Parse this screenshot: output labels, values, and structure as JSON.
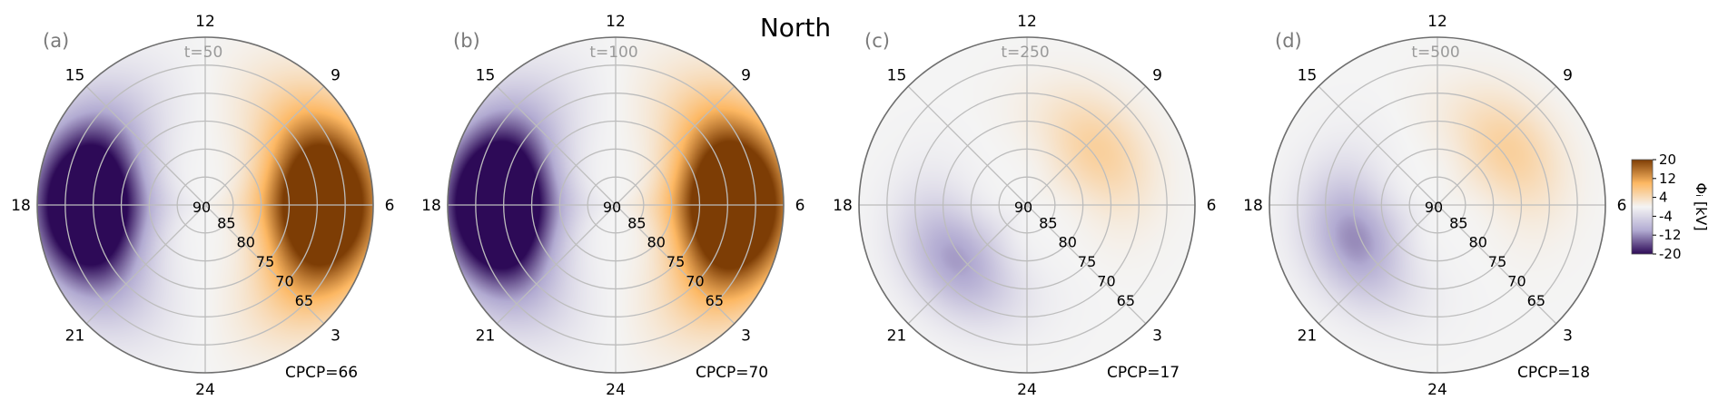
{
  "figure_title": "North",
  "colorbar": {
    "label": "Φᵢ [kV]",
    "ticks": [
      20,
      12,
      4,
      -4,
      -12,
      -20
    ],
    "range": [
      -20,
      20
    ],
    "colors": {
      "low": "#2d0a57",
      "mid": "#f4f4f4",
      "high": "#7d3d05"
    }
  },
  "chart_data": [
    {
      "type": "heatmap",
      "projection": "polar",
      "panel": "(a)",
      "time_label": "t=50",
      "annotation": "CPCP=66",
      "mlt_ticks": [
        "12",
        "9",
        "6",
        "3",
        "24",
        "21",
        "18",
        "15"
      ],
      "lat_ticks": [
        "90",
        "85",
        "80",
        "75",
        "70",
        "65"
      ],
      "lat_range": [
        60,
        90
      ],
      "potential": {
        "peak_kv": 33,
        "trough_kv": -33,
        "peak_mlt": 6,
        "trough_mlt": 18,
        "peak_lat": 69,
        "cell_width_deg": 10,
        "pattern": "two-cell"
      }
    },
    {
      "type": "heatmap",
      "projection": "polar",
      "panel": "(b)",
      "time_label": "t=100",
      "annotation": "CPCP=70",
      "mlt_ticks": [
        "12",
        "9",
        "6",
        "3",
        "24",
        "21",
        "18",
        "15"
      ],
      "lat_ticks": [
        "90",
        "85",
        "80",
        "75",
        "70",
        "65"
      ],
      "lat_range": [
        60,
        90
      ],
      "potential": {
        "peak_kv": 35,
        "trough_kv": -35,
        "peak_mlt": 6,
        "trough_mlt": 18,
        "peak_lat": 69,
        "cell_width_deg": 10,
        "pattern": "two-cell"
      }
    },
    {
      "type": "heatmap",
      "projection": "polar",
      "panel": "(c)",
      "time_label": "t=250",
      "annotation": "CPCP=17",
      "mlt_ticks": [
        "12",
        "9",
        "6",
        "3",
        "24",
        "21",
        "18",
        "15"
      ],
      "lat_ticks": [
        "90",
        "85",
        "80",
        "75",
        "70",
        "65"
      ],
      "lat_range": [
        60,
        90
      ],
      "potential": {
        "peak_kv": 6,
        "trough_kv": -11,
        "peak_mlt": 8.5,
        "trough_mlt": 20.5,
        "peak_lat": 74,
        "cell_width_deg": 8,
        "pattern": "two-cell"
      }
    },
    {
      "type": "heatmap",
      "projection": "polar",
      "panel": "(d)",
      "time_label": "t=500",
      "annotation": "CPCP=18",
      "mlt_ticks": [
        "12",
        "9",
        "6",
        "3",
        "24",
        "21",
        "18",
        "15"
      ],
      "lat_ticks": [
        "90",
        "85",
        "80",
        "75",
        "70",
        "65"
      ],
      "lat_range": [
        60,
        90
      ],
      "potential": {
        "peak_kv": 6,
        "trough_kv": -12,
        "peak_mlt": 8.5,
        "trough_mlt": 19.5,
        "peak_lat": 74,
        "cell_width_deg": 8,
        "pattern": "two-cell"
      }
    }
  ]
}
